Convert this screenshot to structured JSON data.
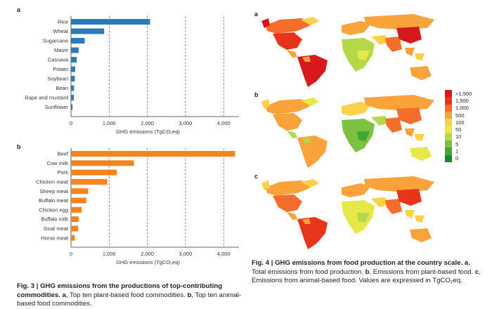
{
  "fig3": {
    "panel_a_label": "a",
    "panel_b_label": "b",
    "caption_bold": "Fig. 3 | GHG emissions from the productions of top-contributing commodities.",
    "caption_a_letter": "a",
    "caption_a_text": ", Top ten plant-based food commodities.",
    "caption_b_letter": "b",
    "caption_b_text": ", Top ten animal-based food commodities."
  },
  "fig4": {
    "map_a_label": "a",
    "map_b_label": "b",
    "map_c_label": "c",
    "caption_bold": "Fig. 4 | GHG emissions from food production at the country scale.",
    "caption_a_letter": "a",
    "caption_a_text": ", Total emissions from food production.",
    "caption_b_letter": "b",
    "caption_b_text": ", Emissions from plant-based food.",
    "caption_c_letter": "c",
    "caption_c_text": ", Emissions from animal-based food. Values are expressed in TgCO₂eq.",
    "legend": [
      {
        "label": ">1,500",
        "color": "#d7191c"
      },
      {
        "label": "1,500",
        "color": "#e8341a"
      },
      {
        "label": "1,000",
        "color": "#f46d2a"
      },
      {
        "label": "500",
        "color": "#f9a33a"
      },
      {
        "label": "100",
        "color": "#fdd04a"
      },
      {
        "label": "50",
        "color": "#e6e84a"
      },
      {
        "label": "10",
        "color": "#b5d84a"
      },
      {
        "label": "5",
        "color": "#7cc142"
      },
      {
        "label": "1",
        "color": "#3ea832"
      },
      {
        "label": "0",
        "color": "#1a8a25"
      }
    ]
  },
  "chart_data": [
    {
      "type": "bar",
      "orientation": "horizontal",
      "categories": [
        "Rice",
        "Wheat",
        "Sugarcane",
        "Maize",
        "Cassava",
        "Potato",
        "Soybean",
        "Bean",
        "Rape and mustard",
        "Sunflower"
      ],
      "values": [
        2070,
        870,
        360,
        200,
        150,
        110,
        100,
        80,
        75,
        40
      ],
      "color": "#2b7bba",
      "xlabel": "GHG emissions (TgCO₂eq)",
      "ticks": [
        "0",
        "1,000",
        "2,000",
        "3,000",
        "4,000"
      ],
      "xlim": [
        0,
        4400
      ],
      "grid": "dashed vertical"
    },
    {
      "type": "bar",
      "orientation": "horizontal",
      "categories": [
        "Beef",
        "Cow milk",
        "Pork",
        "Chicken meat",
        "Sheep meat",
        "Buffalo meat",
        "Chicken egg",
        "Buffalo milk",
        "Goat meat",
        "Horse meat"
      ],
      "values": [
        4300,
        1650,
        1200,
        950,
        450,
        400,
        280,
        200,
        190,
        100
      ],
      "color": "#f5841f",
      "xlabel": "GHG emissions (TgCO₂eq)",
      "ticks": [
        "0",
        "1,000",
        "2,000",
        "3,000",
        "4,000"
      ],
      "xlim": [
        0,
        4400
      ],
      "grid": "dashed vertical"
    }
  ]
}
